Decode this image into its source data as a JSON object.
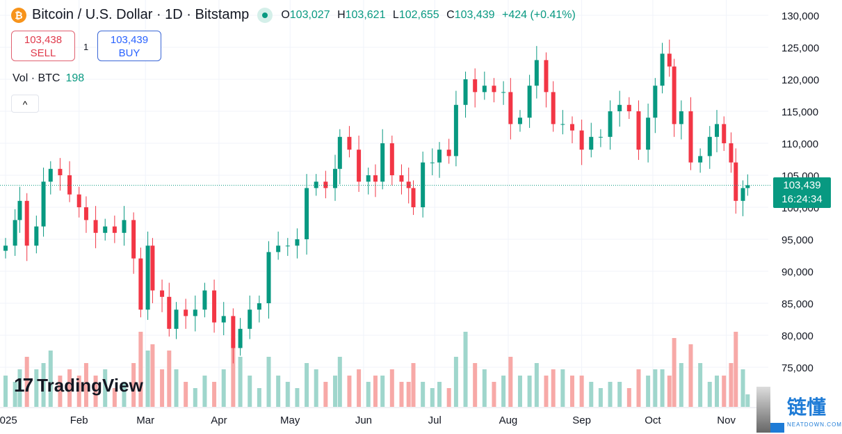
{
  "header": {
    "symbol_icon": "bitcoin-icon",
    "title": "Bitcoin / U.S. Dollar · 1D · Bitstamp",
    "market_status": "open",
    "o_label": "O",
    "o": "103,027",
    "h_label": "H",
    "h": "103,621",
    "l_label": "L",
    "l": "102,655",
    "c_label": "C",
    "c": "103,439",
    "change": "+424 (+0.41%)"
  },
  "trade": {
    "sell_price": "103,438",
    "sell_label": "SELL",
    "quantity": "1",
    "buy_price": "103,439",
    "buy_label": "BUY"
  },
  "volume": {
    "label": "Vol · BTC",
    "value": "198"
  },
  "collapse_icon": "chevron-up-icon",
  "collapse_glyph": "^",
  "price_label": {
    "price": "103,439",
    "countdown": "16:24:34"
  },
  "branding": {
    "logo": "TradingView",
    "watermark_cn": "链懂",
    "watermark_en": "NEATDOWN.COM"
  },
  "colors": {
    "up": "#089981",
    "down": "#f23645",
    "vol_up": "#9fd6cc",
    "vol_down": "#f7a9a7"
  },
  "chart_data": {
    "type": "candlestick",
    "yticks": [
      "130,000",
      "125,000",
      "120,000",
      "115,000",
      "110,000",
      "105,000",
      "100,000",
      "95,000",
      "90,000",
      "85,000",
      "80,000",
      "75,000"
    ],
    "ylim": [
      72000,
      132000
    ],
    "xticks": [
      {
        "label": "2025",
        "date": "2025-01-01"
      },
      {
        "label": "Feb",
        "date": "2025-02-01"
      },
      {
        "label": "Mar",
        "date": "2025-03-01"
      },
      {
        "label": "Apr",
        "date": "2025-04-01"
      },
      {
        "label": "May",
        "date": "2025-05-01"
      },
      {
        "label": "Jun",
        "date": "2025-06-01"
      },
      {
        "label": "Jul",
        "date": "2025-07-01"
      },
      {
        "label": "Aug",
        "date": "2025-08-01"
      },
      {
        "label": "Sep",
        "date": "2025-09-01"
      },
      {
        "label": "Oct",
        "date": "2025-10-01"
      },
      {
        "label": "Nov",
        "date": "2025-11-01"
      }
    ],
    "last_price": 103439,
    "series": [
      [
        "2025-01-01",
        94000,
        5
      ],
      [
        "2025-01-05",
        98000,
        4
      ],
      [
        "2025-01-07",
        101000,
        6
      ],
      [
        "2025-01-10",
        94000,
        8
      ],
      [
        "2025-01-14",
        97000,
        6
      ],
      [
        "2025-01-17",
        104000,
        7
      ],
      [
        "2025-01-20",
        106000,
        9
      ],
      [
        "2025-01-24",
        105000,
        5
      ],
      [
        "2025-01-28",
        102000,
        6
      ],
      [
        "2025-02-01",
        100000,
        5
      ],
      [
        "2025-02-04",
        98000,
        7
      ],
      [
        "2025-02-08",
        96000,
        5
      ],
      [
        "2025-02-12",
        97000,
        6
      ],
      [
        "2025-02-16",
        96000,
        3
      ],
      [
        "2025-02-20",
        98000,
        4
      ],
      [
        "2025-02-24",
        92000,
        7
      ],
      [
        "2025-02-27",
        84000,
        12
      ],
      [
        "2025-03-02",
        94000,
        9
      ],
      [
        "2025-03-04",
        87000,
        10
      ],
      [
        "2025-03-08",
        86000,
        6
      ],
      [
        "2025-03-11",
        81000,
        9
      ],
      [
        "2025-03-14",
        84000,
        6
      ],
      [
        "2025-03-18",
        83000,
        4
      ],
      [
        "2025-03-22",
        84000,
        3
      ],
      [
        "2025-03-26",
        87000,
        5
      ],
      [
        "2025-03-30",
        82000,
        4
      ],
      [
        "2025-04-03",
        83000,
        6
      ],
      [
        "2025-04-07",
        78000,
        11
      ],
      [
        "2025-04-10",
        81000,
        8
      ],
      [
        "2025-04-14",
        84000,
        5
      ],
      [
        "2025-04-18",
        85000,
        3
      ],
      [
        "2025-04-22",
        93000,
        8
      ],
      [
        "2025-04-26",
        94000,
        5
      ],
      [
        "2025-04-30",
        94000,
        4
      ],
      [
        "2025-05-04",
        95000,
        3
      ],
      [
        "2025-05-08",
        103000,
        7
      ],
      [
        "2025-05-12",
        104000,
        6
      ],
      [
        "2025-05-16",
        103000,
        4
      ],
      [
        "2025-05-20",
        106000,
        5
      ],
      [
        "2025-05-22",
        111000,
        8
      ],
      [
        "2025-05-26",
        109000,
        5
      ],
      [
        "2025-05-30",
        104000,
        6
      ],
      [
        "2025-06-03",
        105000,
        4
      ],
      [
        "2025-06-06",
        104000,
        5
      ],
      [
        "2025-06-09",
        110000,
        5
      ],
      [
        "2025-06-13",
        105000,
        6
      ],
      [
        "2025-06-17",
        104000,
        4
      ],
      [
        "2025-06-20",
        103000,
        4
      ],
      [
        "2025-06-22",
        100000,
        7
      ],
      [
        "2025-06-26",
        107000,
        4
      ],
      [
        "2025-06-30",
        107000,
        3
      ],
      [
        "2025-07-03",
        109000,
        4
      ],
      [
        "2025-07-07",
        108000,
        3
      ],
      [
        "2025-07-10",
        116000,
        8
      ],
      [
        "2025-07-14",
        120000,
        12
      ],
      [
        "2025-07-18",
        118000,
        7
      ],
      [
        "2025-07-22",
        119000,
        6
      ],
      [
        "2025-07-26",
        118000,
        4
      ],
      [
        "2025-07-30",
        118000,
        5
      ],
      [
        "2025-08-02",
        113000,
        8
      ],
      [
        "2025-08-06",
        114000,
        5
      ],
      [
        "2025-08-10",
        119000,
        5
      ],
      [
        "2025-08-13",
        123000,
        7
      ],
      [
        "2025-08-17",
        118000,
        5
      ],
      [
        "2025-08-20",
        113000,
        6
      ],
      [
        "2025-08-24",
        113000,
        6
      ],
      [
        "2025-08-28",
        112000,
        5
      ],
      [
        "2025-09-01",
        109000,
        5
      ],
      [
        "2025-09-05",
        111000,
        4
      ],
      [
        "2025-09-09",
        111000,
        3
      ],
      [
        "2025-09-13",
        115000,
        4
      ],
      [
        "2025-09-17",
        116000,
        4
      ],
      [
        "2025-09-21",
        115000,
        3
      ],
      [
        "2025-09-25",
        109000,
        6
      ],
      [
        "2025-09-29",
        114000,
        5
      ],
      [
        "2025-10-02",
        119000,
        6
      ],
      [
        "2025-10-05",
        124000,
        6
      ],
      [
        "2025-10-08",
        122000,
        5
      ],
      [
        "2025-10-10",
        113000,
        11
      ],
      [
        "2025-10-13",
        115000,
        7
      ],
      [
        "2025-10-17",
        107000,
        10
      ],
      [
        "2025-10-21",
        108000,
        7
      ],
      [
        "2025-10-25",
        111000,
        4
      ],
      [
        "2025-10-28",
        113000,
        5
      ],
      [
        "2025-10-31",
        110000,
        5
      ],
      [
        "2025-11-03",
        107000,
        7
      ],
      [
        "2025-11-05",
        101000,
        12
      ],
      [
        "2025-11-08",
        103000,
        6
      ],
      [
        "2025-11-10",
        103439,
        2
      ]
    ],
    "series_fields": [
      "date",
      "close",
      "volume_relative"
    ]
  }
}
